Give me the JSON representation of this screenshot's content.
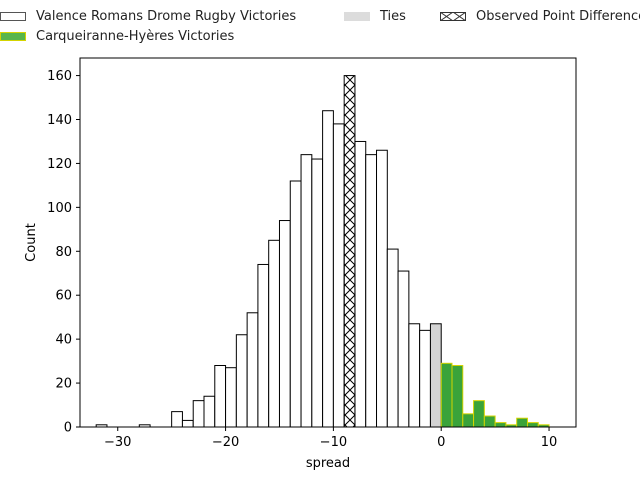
{
  "chart_data": {
    "type": "bar",
    "xlabel": "spread",
    "ylabel": "Count",
    "xlim": [
      -33.5,
      12.5
    ],
    "ylim": [
      0,
      168
    ],
    "xticks": [
      -30,
      -20,
      -10,
      0,
      10
    ],
    "yticks": [
      0,
      20,
      40,
      60,
      80,
      100,
      120,
      140,
      160
    ],
    "xtick_labels": [
      "−30",
      "−20",
      "−10",
      "0",
      "10"
    ],
    "ytick_labels": [
      "0",
      "20",
      "40",
      "60",
      "80",
      "100",
      "120",
      "140",
      "160"
    ],
    "bin_width": 1,
    "legend_position": "top",
    "series": [
      {
        "name": "Valence Romans Drome Rugby Victories",
        "color": "#ffffff",
        "edge": "#000000",
        "bins": [
          [
            -32,
            1
          ],
          [
            -31,
            0
          ],
          [
            -30,
            0
          ],
          [
            -29,
            0
          ],
          [
            -28,
            1
          ],
          [
            -27,
            0
          ],
          [
            -26,
            0
          ],
          [
            -25,
            7
          ],
          [
            -24,
            3
          ],
          [
            -23,
            12
          ],
          [
            -22,
            14
          ],
          [
            -21,
            28
          ],
          [
            -20,
            27
          ],
          [
            -19,
            42
          ],
          [
            -18,
            52
          ],
          [
            -17,
            74
          ],
          [
            -16,
            85
          ],
          [
            -15,
            94
          ],
          [
            -14,
            112
          ],
          [
            -13,
            124
          ],
          [
            -12,
            122
          ],
          [
            -11,
            144
          ],
          [
            -10,
            138
          ],
          [
            -8,
            130
          ],
          [
            -7,
            124
          ],
          [
            -6,
            126
          ],
          [
            -5,
            81
          ],
          [
            -4,
            71
          ],
          [
            -3,
            47
          ],
          [
            -2,
            44
          ]
        ]
      },
      {
        "name": "Ties",
        "color": "#d3d3d3",
        "edge": "#000000",
        "bins": [
          [
            -1,
            47
          ]
        ]
      },
      {
        "name": "Carqueiranne-Hyères Victories",
        "color": "#3aa33a",
        "edge": "#d4d400",
        "bins": [
          [
            0,
            29
          ],
          [
            1,
            28
          ],
          [
            2,
            6
          ],
          [
            3,
            12
          ],
          [
            4,
            5
          ],
          [
            5,
            2
          ],
          [
            6,
            1
          ],
          [
            7,
            4
          ],
          [
            8,
            2
          ],
          [
            9,
            1
          ]
        ]
      },
      {
        "name": "Observed Point Difference",
        "color": "#ffffff",
        "edge": "#000000",
        "hatch": "x",
        "bins": [
          [
            -9,
            160
          ]
        ]
      }
    ]
  }
}
